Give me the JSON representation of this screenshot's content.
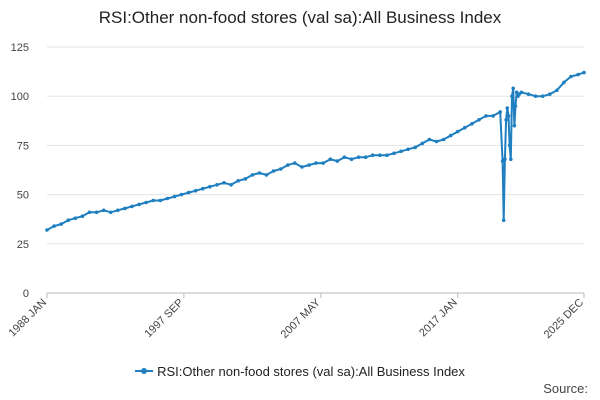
{
  "chart_data": {
    "type": "line",
    "title": "RSI:Other non-food stores (val sa):All Business Index",
    "xlabel": "",
    "ylabel": "",
    "ylim": [
      0,
      125
    ],
    "yticks": [
      0,
      25,
      50,
      75,
      100,
      125
    ],
    "xlim": [
      "1988 JAN",
      "2025 DEC"
    ],
    "xtick_labels": [
      "1988 JAN",
      "1997 SEP",
      "2007 MAY",
      "2017 JAN",
      "2025 DEC"
    ],
    "grid": true,
    "legend_position": "bottom",
    "series": [
      {
        "name": "RSI:Other non-food stores (val sa):All Business Index",
        "color": "#1f7fc0",
        "x": [
          "1988 JAN",
          "1988 JUL",
          "1989 JAN",
          "1989 JUL",
          "1990 JAN",
          "1990 JUL",
          "1991 JAN",
          "1991 JUL",
          "1992 JAN",
          "1992 JUL",
          "1993 JAN",
          "1993 JUL",
          "1994 JAN",
          "1994 JUL",
          "1995 JAN",
          "1995 JUL",
          "1996 JAN",
          "1996 JUL",
          "1997 JAN",
          "1997 JUL",
          "1998 JAN",
          "1998 JUL",
          "1999 JAN",
          "1999 JUL",
          "2000 JAN",
          "2000 JUL",
          "2001 JAN",
          "2001 JUL",
          "2002 JAN",
          "2002 JUL",
          "2003 JAN",
          "2003 JUL",
          "2004 JAN",
          "2004 JUL",
          "2005 JAN",
          "2005 JUL",
          "2006 JAN",
          "2006 JUL",
          "2007 JAN",
          "2007 JUL",
          "2008 JAN",
          "2008 JUL",
          "2009 JAN",
          "2009 JUL",
          "2010 JAN",
          "2010 JUL",
          "2011 JAN",
          "2011 JUL",
          "2012 JAN",
          "2012 JUL",
          "2013 JAN",
          "2013 JUL",
          "2014 JAN",
          "2014 JUL",
          "2015 JAN",
          "2015 JUL",
          "2016 JAN",
          "2016 JUL",
          "2017 JAN",
          "2017 JUL",
          "2018 JAN",
          "2018 JUL",
          "2019 JAN",
          "2019 JUL",
          "2020 JAN",
          "2020 MAR",
          "2020 APR",
          "2020 MAY",
          "2020 JUN",
          "2020 JUL",
          "2020 AUG",
          "2020 SEP",
          "2020 OCT",
          "2020 NOV",
          "2020 DEC",
          "2021 JAN",
          "2021 FEB",
          "2021 MAR",
          "2021 APR",
          "2021 MAY",
          "2021 JUL",
          "2022 JAN",
          "2022 JUL",
          "2023 JAN",
          "2023 JUL",
          "2024 JAN",
          "2024 JUL",
          "2025 JAN",
          "2025 JUL",
          "2025 DEC"
        ],
        "y": [
          32,
          34,
          35,
          37,
          38,
          39,
          41,
          41,
          42,
          41,
          42,
          43,
          44,
          45,
          46,
          47,
          47,
          48,
          49,
          50,
          51,
          52,
          53,
          54,
          55,
          56,
          55,
          57,
          58,
          60,
          61,
          60,
          62,
          63,
          65,
          66,
          64,
          65,
          66,
          66,
          68,
          67,
          69,
          68,
          69,
          69,
          70,
          70,
          70,
          71,
          72,
          73,
          74,
          76,
          78,
          77,
          78,
          80,
          82,
          84,
          86,
          88,
          90,
          90,
          92,
          67,
          37,
          68,
          88,
          94,
          90,
          75,
          68,
          100,
          104,
          85,
          95,
          102,
          100,
          101,
          102,
          101,
          100,
          100,
          101,
          103,
          107,
          110,
          111,
          112
        ]
      }
    ]
  },
  "legend": {
    "label": "RSI:Other non-food stores (val sa):All Business Index"
  },
  "footer": {
    "source_label": "Source:"
  }
}
